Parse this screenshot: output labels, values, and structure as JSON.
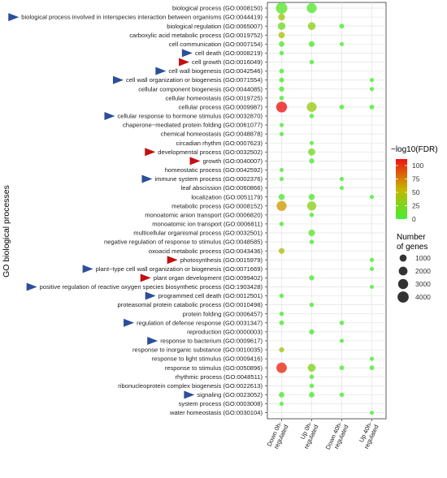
{
  "chart_data": {
    "type": "scatter",
    "ylabel": "GO biological processes",
    "categories_x": [
      "Down 0h- regulated",
      "Up 0h- regulated",
      "Down 40h- regulated",
      "Up 40h- regulated"
    ],
    "x_tick_lines": [
      [
        "Down 0h-",
        "regulated"
      ],
      [
        "Up 0h-",
        "regulated"
      ],
      [
        "Down 40h-",
        "regulated"
      ],
      [
        "Up 40h-",
        "regulated"
      ]
    ],
    "terms": [
      {
        "label": "biological process (GO:0008150)",
        "arrow": "none"
      },
      {
        "label": "biological process involved in interspecies interaction between organisms (GO:0044419)",
        "arrow": "blue"
      },
      {
        "label": "biological regulation (GO:0065007)",
        "arrow": "none"
      },
      {
        "label": "carboxylic acid metabolic process (GO:0019752)",
        "arrow": "none"
      },
      {
        "label": "cell communication (GO:0007154)",
        "arrow": "none"
      },
      {
        "label": "cell death (GO:0008219)",
        "arrow": "blue"
      },
      {
        "label": "cell growth (GO:0016049)",
        "arrow": "red"
      },
      {
        "label": "cell wall biogenesis (GO:0042546)",
        "arrow": "blue"
      },
      {
        "label": "cell wall organization or biogenesis (GO:0071554)",
        "arrow": "blue"
      },
      {
        "label": "cellular component biogenesis (GO:0044085)",
        "arrow": "none"
      },
      {
        "label": "cellular homeostasis (GO:0019725)",
        "arrow": "none"
      },
      {
        "label": "cellular process (GO:0009987)",
        "arrow": "none"
      },
      {
        "label": "cellular response to hormone stimulus (GO:0032870)",
        "arrow": "blue"
      },
      {
        "label": "chaperone−mediated protein folding (GO:0061077)",
        "arrow": "none"
      },
      {
        "label": "chemical homeostasis (GO:0048878)",
        "arrow": "none"
      },
      {
        "label": "circadian rhythm (GO:0007623)",
        "arrow": "none"
      },
      {
        "label": "developmental process (GO:0032502)",
        "arrow": "red"
      },
      {
        "label": "growth (GO:0040007)",
        "arrow": "red"
      },
      {
        "label": "homeostatic process (GO:0042592)",
        "arrow": "none"
      },
      {
        "label": "immune system process (GO:0002376)",
        "arrow": "blue"
      },
      {
        "label": "leaf abscission (GO:0060866)",
        "arrow": "none"
      },
      {
        "label": "localization (GO:0051179)",
        "arrow": "none"
      },
      {
        "label": "metabolic process (GO:0008152)",
        "arrow": "none"
      },
      {
        "label": "monoatomic anion transport (GO:0006820)",
        "arrow": "none"
      },
      {
        "label": "monoatomic ion transport (GO:0006811)",
        "arrow": "none"
      },
      {
        "label": "multicellular organismal process (GO:0032501)",
        "arrow": "none"
      },
      {
        "label": "negative regulation of response to stimulus (GO:0048585)",
        "arrow": "none"
      },
      {
        "label": "oxoacid metabolic process (GO:0043436)",
        "arrow": "none"
      },
      {
        "label": "photosynthesis (GO:0015979)",
        "arrow": "red"
      },
      {
        "label": "plant−type cell wall organization or biogenesis (GO:0071669)",
        "arrow": "blue"
      },
      {
        "label": "plant organ development (GO:0099402)",
        "arrow": "red"
      },
      {
        "label": "positive regulation of reactive oxygen species biosynthetic process (GO:1903428)",
        "arrow": "blue"
      },
      {
        "label": "programmed cell death (GO:0012501)",
        "arrow": "blue"
      },
      {
        "label": "proteasomal protein catabolic process (GO:0010498)",
        "arrow": "none"
      },
      {
        "label": "protein folding (GO:0006457)",
        "arrow": "none"
      },
      {
        "label": "regulation of defense response (GO:0031347)",
        "arrow": "blue"
      },
      {
        "label": "reproduction (GO:0000003)",
        "arrow": "none"
      },
      {
        "label": "response to bacterium (GO:0009617)",
        "arrow": "blue"
      },
      {
        "label": "response to inorganic substance (GO:0010035)",
        "arrow": "none"
      },
      {
        "label": "response to light stimulus (GO:0009416)",
        "arrow": "none"
      },
      {
        "label": "response to stimulus (GO:0050896)",
        "arrow": "none"
      },
      {
        "label": "rhythmic process (GO:0048511)",
        "arrow": "none"
      },
      {
        "label": "ribonucleoprotein complex biogenesis (GO:0022613)",
        "arrow": "none"
      },
      {
        "label": "signaling (GO:0023052)",
        "arrow": "blue"
      },
      {
        "label": "system process (GO:0003008)",
        "arrow": "none"
      },
      {
        "label": "water homeostasis (GO:0030104)",
        "arrow": "none"
      }
    ],
    "points": [
      {
        "x": 0,
        "y": 0,
        "genes": 4200,
        "fdr": 8
      },
      {
        "x": 1,
        "y": 0,
        "genes": 3000,
        "fdr": 5
      },
      {
        "x": 0,
        "y": 1,
        "genes": 900,
        "fdr": 40
      },
      {
        "x": 0,
        "y": 2,
        "genes": 1300,
        "fdr": 20
      },
      {
        "x": 1,
        "y": 2,
        "genes": 1400,
        "fdr": 30
      },
      {
        "x": 2,
        "y": 2,
        "genes": 200,
        "fdr": 2
      },
      {
        "x": 0,
        "y": 3,
        "genes": 700,
        "fdr": 45
      },
      {
        "x": 0,
        "y": 4,
        "genes": 400,
        "fdr": 6
      },
      {
        "x": 1,
        "y": 4,
        "genes": 500,
        "fdr": 5
      },
      {
        "x": 2,
        "y": 4,
        "genes": 100,
        "fdr": 2
      },
      {
        "x": 0,
        "y": 5,
        "genes": 150,
        "fdr": 2
      },
      {
        "x": 1,
        "y": 6,
        "genes": 150,
        "fdr": 2
      },
      {
        "x": 0,
        "y": 7,
        "genes": 200,
        "fdr": 3
      },
      {
        "x": 0,
        "y": 8,
        "genes": 250,
        "fdr": 3
      },
      {
        "x": 3,
        "y": 8,
        "genes": 100,
        "fdr": 2
      },
      {
        "x": 0,
        "y": 9,
        "genes": 300,
        "fdr": 3
      },
      {
        "x": 3,
        "y": 9,
        "genes": 100,
        "fdr": 2
      },
      {
        "x": 0,
        "y": 10,
        "genes": 150,
        "fdr": 2
      },
      {
        "x": 0,
        "y": 11,
        "genes": 3700,
        "fdr": 112
      },
      {
        "x": 1,
        "y": 11,
        "genes": 2800,
        "fdr": 35
      },
      {
        "x": 2,
        "y": 11,
        "genes": 200,
        "fdr": 2
      },
      {
        "x": 3,
        "y": 11,
        "genes": 200,
        "fdr": 2
      },
      {
        "x": 1,
        "y": 12,
        "genes": 150,
        "fdr": 2
      },
      {
        "x": 0,
        "y": 13,
        "genes": 100,
        "fdr": 2
      },
      {
        "x": 0,
        "y": 14,
        "genes": 100,
        "fdr": 2
      },
      {
        "x": 1,
        "y": 15,
        "genes": 100,
        "fdr": 2
      },
      {
        "x": 1,
        "y": 16,
        "genes": 1100,
        "fdr": 20
      },
      {
        "x": 1,
        "y": 17,
        "genes": 300,
        "fdr": 3
      },
      {
        "x": 0,
        "y": 18,
        "genes": 100,
        "fdr": 2
      },
      {
        "x": 0,
        "y": 19,
        "genes": 100,
        "fdr": 2
      },
      {
        "x": 2,
        "y": 19,
        "genes": 100,
        "fdr": 2
      },
      {
        "x": 2,
        "y": 20,
        "genes": 80,
        "fdr": 2
      },
      {
        "x": 0,
        "y": 21,
        "genes": 600,
        "fdr": 5
      },
      {
        "x": 1,
        "y": 21,
        "genes": 600,
        "fdr": 5
      },
      {
        "x": 3,
        "y": 21,
        "genes": 100,
        "fdr": 2
      },
      {
        "x": 0,
        "y": 22,
        "genes": 2900,
        "fdr": 65
      },
      {
        "x": 1,
        "y": 22,
        "genes": 2300,
        "fdr": 30
      },
      {
        "x": 1,
        "y": 23,
        "genes": 150,
        "fdr": 2
      },
      {
        "x": 0,
        "y": 24,
        "genes": 150,
        "fdr": 2
      },
      {
        "x": 1,
        "y": 25,
        "genes": 800,
        "fdr": 10
      },
      {
        "x": 1,
        "y": 26,
        "genes": 150,
        "fdr": 2
      },
      {
        "x": 0,
        "y": 27,
        "genes": 500,
        "fdr": 45
      },
      {
        "x": 3,
        "y": 28,
        "genes": 100,
        "fdr": 2
      },
      {
        "x": 3,
        "y": 29,
        "genes": 100,
        "fdr": 2
      },
      {
        "x": 1,
        "y": 30,
        "genes": 300,
        "fdr": 3
      },
      {
        "x": 3,
        "y": 31,
        "genes": 80,
        "fdr": 2
      },
      {
        "x": 0,
        "y": 32,
        "genes": 150,
        "fdr": 2
      },
      {
        "x": 1,
        "y": 33,
        "genes": 150,
        "fdr": 2
      },
      {
        "x": 0,
        "y": 34,
        "genes": 150,
        "fdr": 2
      },
      {
        "x": 0,
        "y": 35,
        "genes": 200,
        "fdr": 3
      },
      {
        "x": 2,
        "y": 35,
        "genes": 150,
        "fdr": 2
      },
      {
        "x": 1,
        "y": 36,
        "genes": 300,
        "fdr": 3
      },
      {
        "x": 2,
        "y": 37,
        "genes": 100,
        "fdr": 2
      },
      {
        "x": 0,
        "y": 38,
        "genes": 300,
        "fdr": 40
      },
      {
        "x": 3,
        "y": 39,
        "genes": 100,
        "fdr": 2
      },
      {
        "x": 0,
        "y": 40,
        "genes": 3300,
        "fdr": 105
      },
      {
        "x": 1,
        "y": 40,
        "genes": 1500,
        "fdr": 25
      },
      {
        "x": 2,
        "y": 40,
        "genes": 200,
        "fdr": 2
      },
      {
        "x": 3,
        "y": 40,
        "genes": 200,
        "fdr": 2
      },
      {
        "x": 1,
        "y": 41,
        "genes": 150,
        "fdr": 2
      },
      {
        "x": 1,
        "y": 42,
        "genes": 150,
        "fdr": 2
      },
      {
        "x": 0,
        "y": 43,
        "genes": 400,
        "fdr": 3
      },
      {
        "x": 1,
        "y": 43,
        "genes": 400,
        "fdr": 3
      },
      {
        "x": 2,
        "y": 43,
        "genes": 150,
        "fdr": 2
      },
      {
        "x": 0,
        "y": 44,
        "genes": 100,
        "fdr": 2
      },
      {
        "x": 3,
        "y": 45,
        "genes": 80,
        "fdr": 2
      }
    ],
    "color_legend": {
      "title": "−log10(FDR)",
      "ticks": [
        0,
        25,
        50,
        75,
        100
      ],
      "range": [
        0,
        112
      ],
      "low_color": "#44ee33",
      "mid_color": "#c8b400",
      "high_color": "#ee1111"
    },
    "size_legend": {
      "title_lines": [
        "Number",
        "of genes"
      ],
      "values": [
        1000,
        2000,
        3000,
        4000
      ]
    },
    "arrow_colors": {
      "blue": "#2c4f9a",
      "red": "#c41010"
    },
    "grid": true
  }
}
